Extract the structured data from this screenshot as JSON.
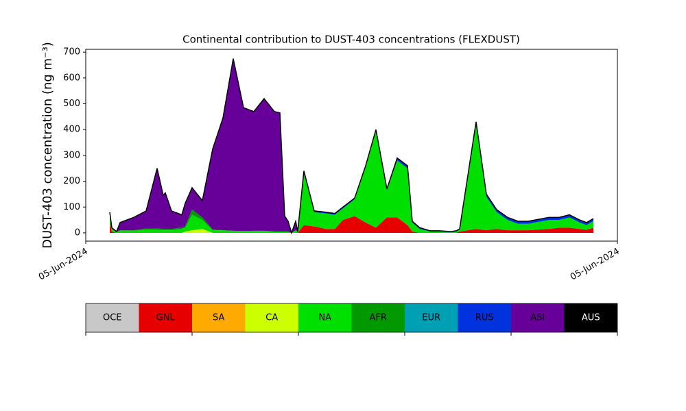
{
  "chart_data": {
    "type": "stacked_area",
    "title": "Continental contribution to DUST-403 concentrations (FLEXDUST)",
    "y_label": "DUST-403 concentration (ng m⁻³)",
    "xlim": [
      0,
      775
    ],
    "xticks": [
      {
        "value": 0,
        "label": "05-Jun-2024"
      },
      {
        "value": 775,
        "label": "05-Jun-2024"
      }
    ],
    "ylim": [
      -32,
      711
    ],
    "yticks": [
      0,
      100,
      200,
      300,
      400,
      500,
      600,
      700
    ],
    "x": [
      35,
      38,
      45,
      50,
      70,
      88,
      104,
      113,
      116,
      125,
      140,
      145,
      155,
      170,
      185,
      200,
      215,
      230,
      245,
      260,
      275,
      283,
      290,
      295,
      300,
      306,
      309,
      318,
      333,
      350,
      363,
      375,
      392,
      408,
      423,
      439,
      454,
      469,
      476,
      487,
      502,
      515,
      532,
      540,
      545,
      569,
      584,
      599,
      615,
      630,
      645,
      675,
      690,
      705,
      720,
      730,
      740
    ],
    "series": [
      {
        "name": "OCE",
        "color": "#c8c8c8",
        "values": [
          0,
          0,
          0,
          0,
          0,
          0,
          0,
          0,
          0,
          0,
          0,
          0,
          0,
          0,
          0,
          0,
          0,
          0,
          0,
          0,
          0,
          0,
          0,
          0,
          0,
          0,
          0,
          0,
          0,
          0,
          0,
          0,
          0,
          0,
          0,
          0,
          0,
          0,
          0,
          0,
          0,
          0,
          0,
          0,
          0,
          0,
          0,
          0,
          0,
          0,
          0,
          0,
          0,
          0,
          0,
          0,
          0
        ]
      },
      {
        "name": "GNL",
        "color": "#e60000",
        "values": [
          40,
          5,
          0,
          0,
          0,
          0,
          0,
          0,
          0,
          0,
          0,
          0,
          0,
          0,
          0,
          0,
          0,
          0,
          0,
          0,
          0,
          0,
          0,
          0,
          0,
          0,
          0,
          30,
          25,
          15,
          15,
          50,
          65,
          40,
          20,
          60,
          60,
          30,
          5,
          0,
          0,
          0,
          0,
          0,
          5,
          15,
          10,
          15,
          10,
          10,
          10,
          15,
          20,
          20,
          15,
          12,
          20
        ]
      },
      {
        "name": "SA",
        "color": "#ffaa00",
        "values": [
          0,
          0,
          0,
          0,
          0,
          0,
          0,
          0,
          0,
          0,
          0,
          0,
          0,
          0,
          0,
          0,
          0,
          0,
          0,
          0,
          0,
          0,
          0,
          0,
          0,
          0,
          0,
          0,
          0,
          0,
          0,
          0,
          0,
          0,
          0,
          0,
          0,
          0,
          0,
          0,
          0,
          0,
          0,
          0,
          0,
          0,
          0,
          0,
          0,
          0,
          0,
          0,
          0,
          0,
          0,
          0,
          0
        ]
      },
      {
        "name": "CA",
        "color": "#ccff00",
        "values": [
          0,
          0,
          0,
          0,
          0,
          0,
          0,
          0,
          0,
          0,
          0,
          5,
          10,
          15,
          0,
          0,
          0,
          0,
          0,
          0,
          0,
          0,
          0,
          0,
          0,
          0,
          0,
          0,
          0,
          0,
          0,
          0,
          0,
          0,
          0,
          0,
          0,
          0,
          0,
          0,
          0,
          0,
          0,
          0,
          0,
          0,
          0,
          0,
          0,
          0,
          0,
          0,
          0,
          0,
          0,
          0,
          0
        ]
      },
      {
        "name": "NA",
        "color": "#00e000",
        "values": [
          35,
          10,
          3,
          8,
          8,
          12,
          12,
          10,
          10,
          10,
          15,
          15,
          60,
          35,
          10,
          10,
          8,
          7,
          8,
          8,
          5,
          5,
          5,
          5,
          0,
          10,
          5,
          200,
          55,
          60,
          55,
          45,
          65,
          215,
          375,
          105,
          220,
          220,
          35,
          15,
          5,
          5,
          3,
          5,
          7,
          405,
          130,
          65,
          40,
          25,
          25,
          35,
          30,
          40,
          25,
          18,
          25
        ]
      },
      {
        "name": "AFR",
        "color": "#009900",
        "values": [
          0,
          0,
          0,
          2,
          2,
          5,
          5,
          5,
          5,
          5,
          5,
          5,
          20,
          10,
          3,
          0,
          0,
          0,
          0,
          0,
          0,
          0,
          0,
          0,
          0,
          0,
          0,
          0,
          0,
          0,
          0,
          0,
          0,
          0,
          0,
          0,
          0,
          0,
          0,
          0,
          0,
          0,
          0,
          0,
          0,
          0,
          0,
          0,
          0,
          0,
          0,
          0,
          0,
          0,
          0,
          0,
          0
        ]
      },
      {
        "name": "EUR",
        "color": "#00a0b4",
        "values": [
          0,
          0,
          0,
          0,
          0,
          0,
          0,
          0,
          0,
          0,
          0,
          0,
          0,
          0,
          0,
          0,
          0,
          0,
          0,
          0,
          0,
          0,
          0,
          0,
          0,
          0,
          0,
          0,
          0,
          0,
          0,
          0,
          0,
          0,
          0,
          0,
          0,
          0,
          0,
          0,
          0,
          0,
          0,
          0,
          0,
          0,
          0,
          0,
          0,
          0,
          0,
          0,
          0,
          0,
          0,
          0,
          0
        ]
      },
      {
        "name": "RUS",
        "color": "#0033dd",
        "values": [
          0,
          0,
          0,
          0,
          0,
          0,
          0,
          0,
          0,
          0,
          0,
          0,
          0,
          0,
          0,
          0,
          0,
          0,
          0,
          0,
          0,
          0,
          0,
          0,
          0,
          0,
          0,
          5,
          5,
          5,
          5,
          5,
          5,
          5,
          5,
          5,
          10,
          10,
          5,
          5,
          3,
          3,
          2,
          3,
          3,
          10,
          10,
          10,
          10,
          10,
          10,
          10,
          10,
          10,
          10,
          10,
          10
        ]
      },
      {
        "name": "ASI",
        "color": "#660099",
        "values": [
          5,
          5,
          2,
          30,
          50,
          68,
          233,
          130,
          140,
          70,
          50,
          90,
          85,
          65,
          312,
          435,
          667,
          478,
          462,
          512,
          465,
          460,
          60,
          40,
          0,
          35,
          0,
          5,
          0,
          0,
          0,
          0,
          0,
          0,
          0,
          0,
          0,
          0,
          0,
          0,
          0,
          0,
          0,
          0,
          0,
          0,
          0,
          0,
          0,
          0,
          0,
          0,
          0,
          0,
          0,
          0,
          0
        ]
      },
      {
        "name": "AUS",
        "color": "#000000",
        "values": [
          0,
          0,
          0,
          0,
          0,
          0,
          0,
          0,
          0,
          0,
          0,
          0,
          0,
          0,
          0,
          0,
          0,
          0,
          0,
          0,
          0,
          0,
          0,
          0,
          0,
          0,
          0,
          0,
          0,
          0,
          0,
          0,
          0,
          0,
          0,
          0,
          0,
          0,
          0,
          0,
          0,
          0,
          0,
          0,
          0,
          0,
          0,
          0,
          0,
          0,
          0,
          0,
          0,
          0,
          0,
          0,
          0
        ]
      }
    ]
  }
}
